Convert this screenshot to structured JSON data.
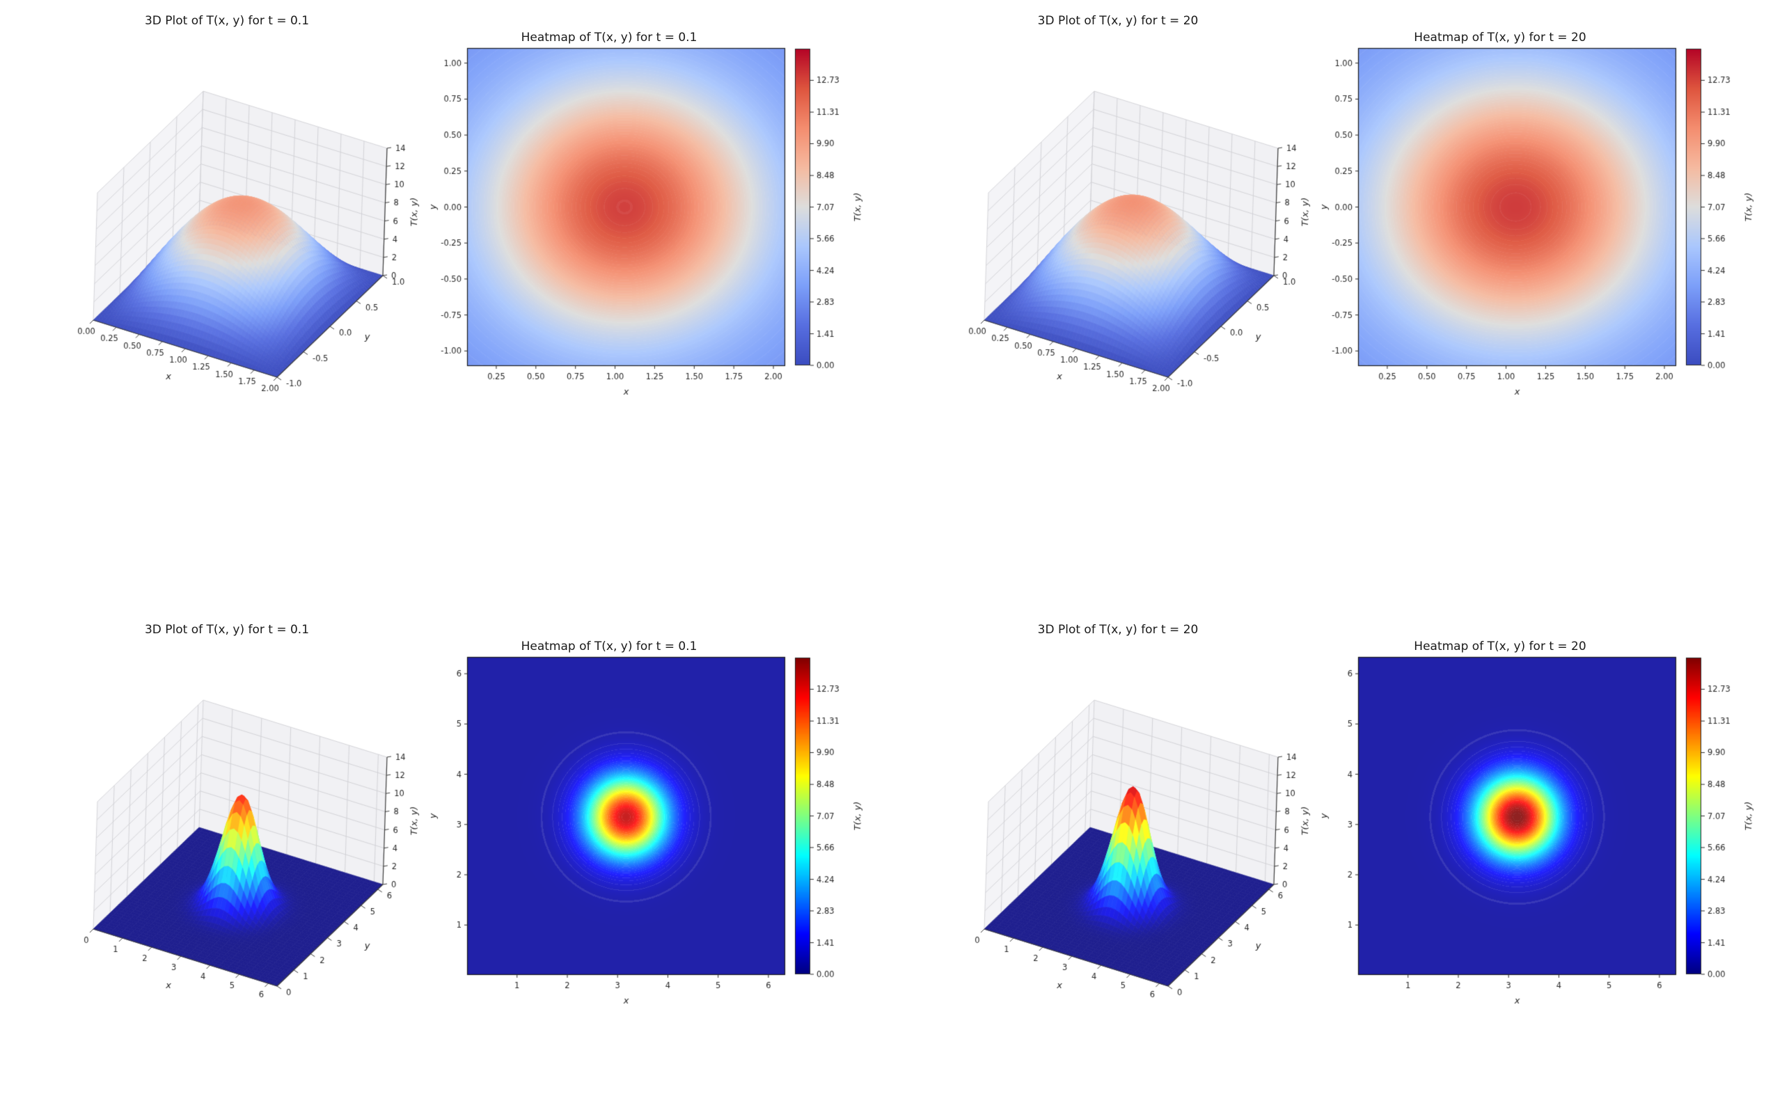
{
  "figure": {
    "background": "#ffffff"
  },
  "colorbar": {
    "ticks": [
      "0.00",
      "1.41",
      "2.83",
      "4.24",
      "5.66",
      "7.07",
      "8.48",
      "9.90",
      "11.31",
      "12.73"
    ],
    "label": "T(x, y)",
    "scale_max": 14.142
  },
  "palette": {
    "coolwarm_low": "#3b4cc0",
    "coolwarm_mid": "#dddddd",
    "coolwarm_high": "#b40426",
    "jet_low": "#000080",
    "jet_high": "#800000",
    "pane": "#f4f4f7",
    "grid": "#cfcfd4",
    "axis_text": "#262626"
  },
  "chart_data": [
    {
      "type": "surface3d",
      "quadrant": "top-left",
      "title": "3D Plot of T(x, y) for t = 0.1",
      "colormap": "coolwarm",
      "xlabel": "x",
      "ylabel": "y",
      "zlabel": "T(x, y)",
      "x_range": [
        0,
        2
      ],
      "y_range": [
        -1,
        1
      ],
      "z_range": [
        0,
        14
      ],
      "x_ticks": [
        "0.00",
        "0.25",
        "0.50",
        "0.75",
        "1.00",
        "1.25",
        "1.50",
        "1.75",
        "2.00"
      ],
      "y_ticks": [
        "-1.0",
        "-0.5",
        "0.0",
        "0.5",
        "1.0"
      ],
      "z_ticks": [
        "0",
        "2",
        "4",
        "6",
        "8",
        "10",
        "12",
        "14"
      ],
      "surface": {
        "kind": "sine",
        "peak": 10.4
      }
    },
    {
      "type": "heatmap",
      "quadrant": "top-left",
      "title": "Heatmap of T(x, y) for t = 0.1",
      "colormap": "coolwarm",
      "xlabel": "x",
      "ylabel": "y",
      "x_range": [
        0.07,
        2.07
      ],
      "y_range": [
        -1.1,
        1.1
      ],
      "x_ticks": [
        "0.25",
        "0.50",
        "0.75",
        "1.00",
        "1.25",
        "1.50",
        "1.75",
        "2.00"
      ],
      "y_ticks": [
        "1.00",
        "0.75",
        "0.50",
        "0.25",
        "0.00",
        "-0.25",
        "-0.50",
        "-0.75",
        "-1.00"
      ],
      "field": {
        "center": [
          1.06,
          0.0
        ],
        "sigma": 0.62,
        "peak": 10.4,
        "base": 2.6
      }
    },
    {
      "type": "surface3d",
      "quadrant": "top-right",
      "title": "3D Plot of T(x, y) for t = 20",
      "colormap": "coolwarm",
      "xlabel": "x",
      "ylabel": "y",
      "zlabel": "T(x, y)",
      "x_range": [
        0,
        2
      ],
      "y_range": [
        -1,
        1
      ],
      "z_range": [
        0,
        14
      ],
      "x_ticks": [
        "0.00",
        "0.25",
        "0.50",
        "0.75",
        "1.00",
        "1.25",
        "1.50",
        "1.75",
        "2.00"
      ],
      "y_ticks": [
        "-1.0",
        "-0.5",
        "0.0",
        "0.5",
        "1.0"
      ],
      "z_ticks": [
        "0",
        "2",
        "4",
        "6",
        "8",
        "10",
        "12",
        "14"
      ],
      "surface": {
        "kind": "sine",
        "peak": 10.5
      }
    },
    {
      "type": "heatmap",
      "quadrant": "top-right",
      "title": "Heatmap of T(x, y) for t = 20",
      "colormap": "coolwarm",
      "xlabel": "x",
      "ylabel": "y",
      "x_range": [
        0.07,
        2.07
      ],
      "y_range": [
        -1.1,
        1.1
      ],
      "x_ticks": [
        "0.25",
        "0.50",
        "0.75",
        "1.00",
        "1.25",
        "1.50",
        "1.75",
        "2.00"
      ],
      "y_ticks": [
        "1.00",
        "0.75",
        "0.50",
        "0.25",
        "0.00",
        "-0.25",
        "-0.50",
        "-0.75",
        "-1.00"
      ],
      "field": {
        "center": [
          1.06,
          0.0
        ],
        "sigma": 0.63,
        "peak": 10.5,
        "base": 2.6
      }
    },
    {
      "type": "surface3d",
      "quadrant": "bottom-left",
      "title": "3D Plot of T(x, y) for t = 0.1",
      "colormap": "jet",
      "xlabel": "x",
      "ylabel": "y",
      "zlabel": "T(x, y)",
      "x_range": [
        0,
        6.3
      ],
      "y_range": [
        0,
        6.3
      ],
      "z_range": [
        0,
        14
      ],
      "x_ticks": [
        "0",
        "1",
        "2",
        "3",
        "4",
        "5",
        "6"
      ],
      "y_ticks": [
        "0",
        "1",
        "2",
        "3",
        "4",
        "5",
        "6"
      ],
      "z_ticks": [
        "0",
        "2",
        "4",
        "6",
        "8",
        "10",
        "12",
        "14"
      ],
      "surface": {
        "kind": "gauss",
        "peak": 12.3,
        "center": [
          3.15,
          3.15
        ],
        "sigma": 0.55
      }
    },
    {
      "type": "heatmap",
      "quadrant": "bottom-left",
      "title": "Heatmap of T(x, y) for t = 0.1",
      "colormap": "jet",
      "xlabel": "x",
      "ylabel": "y",
      "x_range": [
        0.02,
        6.32
      ],
      "y_range": [
        0.02,
        6.32
      ],
      "x_ticks": [
        "1",
        "2",
        "3",
        "4",
        "5",
        "6"
      ],
      "y_ticks": [
        "1",
        "2",
        "3",
        "4",
        "5",
        "6"
      ],
      "field": {
        "center": [
          3.17,
          3.15
        ],
        "sigma": 0.55,
        "peak": 12.9,
        "base": 0.4
      }
    },
    {
      "type": "surface3d",
      "quadrant": "bottom-right",
      "title": "3D Plot of T(x, y) for t = 20",
      "colormap": "jet",
      "xlabel": "x",
      "ylabel": "y",
      "zlabel": "T(x, y)",
      "x_range": [
        0,
        6.3
      ],
      "y_range": [
        0,
        6.3
      ],
      "z_range": [
        0,
        14
      ],
      "x_ticks": [
        "0",
        "1",
        "2",
        "3",
        "4",
        "5",
        "6"
      ],
      "y_ticks": [
        "0",
        "1",
        "2",
        "3",
        "4",
        "5",
        "6"
      ],
      "z_ticks": [
        "0",
        "2",
        "4",
        "6",
        "8",
        "10",
        "12",
        "14"
      ],
      "surface": {
        "kind": "gauss",
        "peak": 13.2,
        "center": [
          3.15,
          3.15
        ],
        "sigma": 0.55
      }
    },
    {
      "type": "heatmap",
      "quadrant": "bottom-right",
      "title": "Heatmap of T(x, y) for t = 20",
      "colormap": "jet",
      "xlabel": "x",
      "ylabel": "y",
      "x_range": [
        0.02,
        6.32
      ],
      "y_range": [
        0.02,
        6.32
      ],
      "x_ticks": [
        "1",
        "2",
        "3",
        "4",
        "5",
        "6"
      ],
      "y_ticks": [
        "1",
        "2",
        "3",
        "4",
        "5",
        "6"
      ],
      "field": {
        "center": [
          3.17,
          3.15
        ],
        "sigma": 0.56,
        "peak": 13.9,
        "base": 0.4
      }
    }
  ]
}
